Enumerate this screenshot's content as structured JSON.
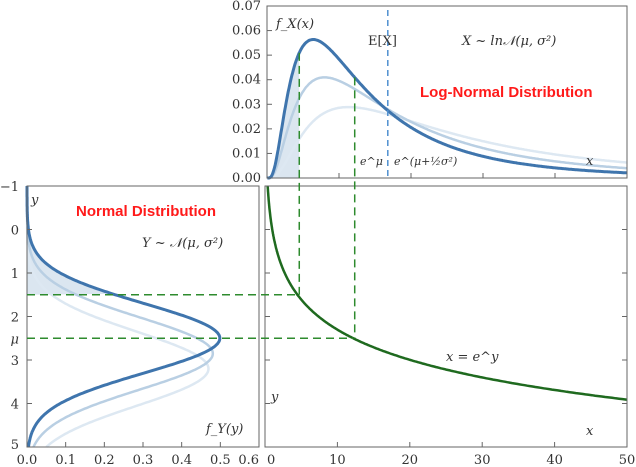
{
  "chart_data": {
    "type": "line",
    "colors": {
      "main": "#3f75ad",
      "light1": "#b9cfe3",
      "light2": "#dde8f2",
      "transform": "#1f6a1f",
      "dashed_green": "#2e8b2e",
      "dashed_blue": "#4f8fcf",
      "titles": "#ff1a1a"
    },
    "lognormal_panel": {
      "title": "Log-Normal Distribution",
      "ylabel": "f_X(x)",
      "xlabel": "x",
      "legend": "X ~ ln𝒩(μ, σ²)",
      "mean_label": "E[X]",
      "emu_label": "e^μ",
      "emean_label": "e^(μ+½σ²)",
      "xlim": [
        0,
        50
      ],
      "ylim": [
        0,
        0.07
      ],
      "yticks": [
        "0.00",
        "0.01",
        "0.02",
        "0.03",
        "0.04",
        "0.05",
        "0.06",
        "0.07"
      ],
      "series": [
        {
          "mu": 2.5,
          "sigma": 0.8
        },
        {
          "mu": 2.8,
          "sigma": 0.85
        },
        {
          "mu": 3.15,
          "sigma": 0.85
        }
      ],
      "shade_to_x": 4.48
    },
    "normal_panel": {
      "title": "Normal Distribution",
      "ylabel": "y",
      "xlabel": "f_Y(y)",
      "legend": "Y ~ 𝒩(μ, σ²)",
      "xlim": [
        0,
        0.6
      ],
      "ylim": [
        -1,
        5
      ],
      "xticks": [
        "0.0",
        "0.1",
        "0.2",
        "0.3",
        "0.4",
        "0.5",
        "0.6"
      ],
      "yticks": [
        "−1",
        "0",
        "1",
        "2",
        "μ",
        "3",
        "4",
        "5"
      ],
      "ytick_values": [
        -1,
        0,
        1,
        2,
        2.5,
        3,
        4,
        5
      ],
      "shade_to_y": 1.5
    },
    "transform_panel": {
      "curve_label": "x = e^y",
      "xlabel": "x",
      "ylabel": "y",
      "xticks": [
        "0",
        "10",
        "20",
        "30",
        "40",
        "50"
      ],
      "guides_y": [
        1.5,
        2.5
      ]
    }
  }
}
